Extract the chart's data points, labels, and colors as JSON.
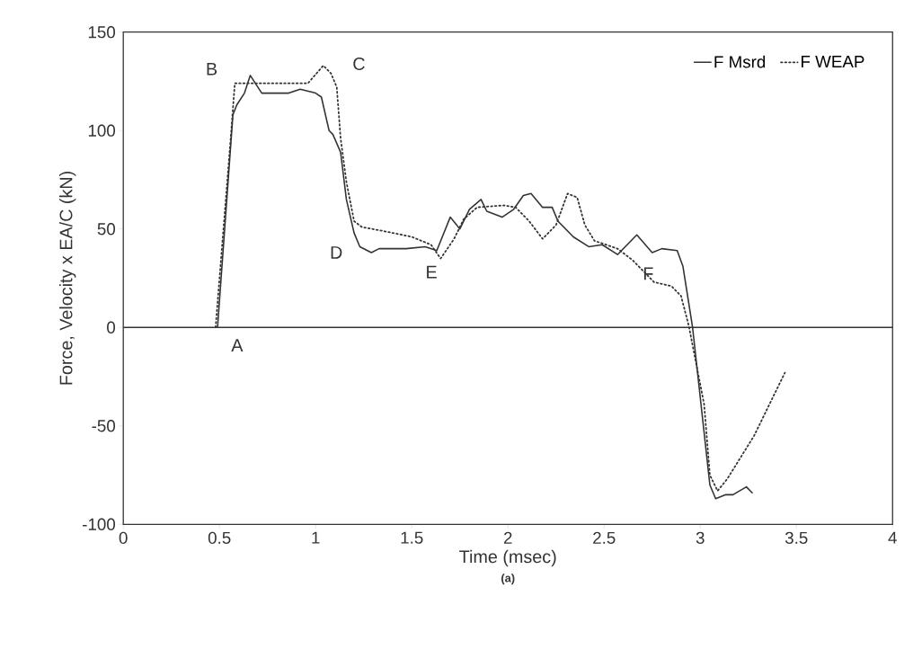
{
  "chart_data": {
    "type": "line",
    "xlabel": "Time (msec)",
    "ylabel": "Force, Velocity x EA/C (kN)",
    "xlim": [
      0,
      4
    ],
    "ylim": [
      -100,
      150
    ],
    "xticks": [
      0,
      0.5,
      1,
      1.5,
      2,
      2.5,
      3,
      3.5,
      4
    ],
    "yticks": [
      -100,
      -50,
      0,
      50,
      100,
      150
    ],
    "grid": false,
    "legend": "top right",
    "marker": "none",
    "ref_lines": [
      {
        "axis": "y",
        "value": 0,
        "color": "#333333"
      }
    ],
    "annotations": [
      {
        "text": "A",
        "x": 0.49,
        "y": 0
      },
      {
        "text": "B",
        "x": 0.58,
        "y": 124
      },
      {
        "text": "C",
        "x": 1.04,
        "y": 133
      },
      {
        "text": "D",
        "x": 1.2,
        "y": 48
      },
      {
        "text": "E",
        "x": 1.63,
        "y": 39
      },
      {
        "text": "F",
        "x": 2.85,
        "y": 21
      },
      "(a)"
    ],
    "series": [
      {
        "name": "F Msrd",
        "color": "#333333",
        "line_style": "solid",
        "x": [
          0.49,
          0.57,
          0.59,
          0.63,
          0.66,
          0.72,
          0.86,
          0.92,
          1.0,
          1.03,
          1.07,
          1.09,
          1.13,
          1.16,
          1.2,
          1.23,
          1.29,
          1.33,
          1.47,
          1.57,
          1.63,
          1.7,
          1.75,
          1.8,
          1.86,
          1.89,
          1.97,
          2.03,
          2.08,
          2.12,
          2.18,
          2.23,
          2.26,
          2.34,
          2.42,
          2.49,
          2.57,
          2.67,
          2.75,
          2.8,
          2.88,
          2.91,
          2.96,
          3.05,
          3.08,
          3.13,
          3.17,
          3.24,
          3.27
        ],
        "values": [
          0,
          108,
          113,
          119,
          128,
          119,
          119,
          121,
          119,
          117,
          100,
          98,
          89,
          65,
          48,
          41,
          38,
          40,
          40,
          41,
          39,
          56,
          50,
          60,
          65,
          59,
          56,
          60,
          67,
          68,
          61,
          61,
          54,
          46,
          41,
          42,
          37,
          47,
          38,
          40,
          39,
          31,
          0,
          -80,
          -87,
          -85,
          -85,
          -81,
          -84
        ]
      },
      {
        "name": "F WEAP",
        "color": "#333333",
        "line_style": "dotted",
        "x": [
          0.48,
          0.56,
          0.58,
          0.96,
          1.04,
          1.08,
          1.11,
          1.13,
          1.16,
          1.2,
          1.24,
          1.35,
          1.5,
          1.6,
          1.65,
          1.72,
          1.77,
          1.84,
          1.98,
          2.04,
          2.11,
          2.18,
          2.25,
          2.31,
          2.36,
          2.4,
          2.45,
          2.57,
          2.65,
          2.76,
          2.85,
          2.9,
          2.94,
          3.02,
          3.05,
          3.09,
          3.14,
          3.28,
          3.44
        ],
        "values": [
          0,
          98,
          124,
          124,
          133,
          129,
          122,
          96,
          74,
          54,
          51,
          49,
          46,
          42,
          35,
          45,
          55,
          61,
          62,
          61,
          54,
          45,
          52,
          68,
          66,
          52,
          44,
          40,
          34,
          23,
          21,
          16,
          1,
          -39,
          -75,
          -83,
          -77,
          -55,
          -23
        ]
      }
    ]
  }
}
